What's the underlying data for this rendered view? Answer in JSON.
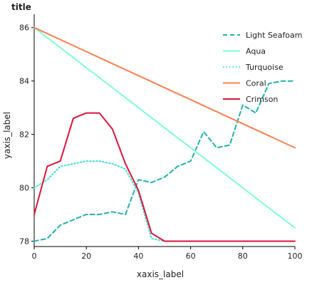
{
  "chart_data": {
    "type": "line",
    "title": "title",
    "xlabel": "xaxis_label",
    "ylabel": "yaxis_label",
    "xlim": [
      0,
      100
    ],
    "ylim": [
      77.8,
      86.5
    ],
    "xticks": [
      0,
      20,
      40,
      60,
      80,
      100
    ],
    "yticks": [
      78,
      80,
      82,
      84,
      86
    ],
    "grid": false,
    "legend_position": "top-right",
    "series": [
      {
        "name": "Light Seafoam",
        "color": "#20B2AA",
        "dash": "dash",
        "x": [
          0,
          5,
          10,
          15,
          20,
          25,
          30,
          35,
          40,
          45,
          50,
          55,
          60,
          65,
          70,
          75,
          80,
          85,
          90,
          95,
          100
        ],
        "y": [
          78.0,
          78.1,
          78.6,
          78.8,
          79.0,
          79.0,
          79.1,
          79.0,
          80.3,
          80.2,
          80.4,
          80.8,
          81.0,
          82.1,
          81.5,
          81.6,
          83.1,
          82.8,
          83.9,
          84.0,
          84.0
        ]
      },
      {
        "name": "Aqua",
        "color": "#7FFFD4",
        "dash": "solid",
        "x": [
          0,
          100
        ],
        "y": [
          86.0,
          78.5
        ]
      },
      {
        "name": "Turquoise",
        "color": "#40E0D0",
        "dash": "dot",
        "x": [
          0,
          5,
          10,
          15,
          20,
          25,
          30,
          35,
          40,
          45,
          50,
          55,
          60,
          65,
          70,
          75,
          80,
          85,
          90,
          95,
          100
        ],
        "y": [
          80.0,
          80.3,
          80.8,
          80.9,
          81.0,
          81.0,
          80.9,
          80.7,
          79.8,
          78.1,
          78.0,
          78.0,
          78.0,
          78.0,
          78.0,
          78.0,
          78.0,
          78.0,
          78.0,
          78.0,
          78.0
        ]
      },
      {
        "name": "Coral",
        "color": "#FF7F50",
        "dash": "solid",
        "x": [
          0,
          100
        ],
        "y": [
          86.0,
          81.5
        ]
      },
      {
        "name": "Crimson",
        "color": "#DC143C",
        "dash": "solid",
        "x": [
          0,
          5,
          10,
          15,
          20,
          25,
          30,
          35,
          40,
          45,
          50,
          55,
          60,
          65,
          70,
          75,
          80,
          85,
          90,
          95,
          100
        ],
        "y": [
          79.0,
          80.8,
          81.0,
          82.6,
          82.8,
          82.8,
          82.2,
          80.9,
          79.9,
          78.3,
          78.0,
          78.0,
          78.0,
          78.0,
          78.0,
          78.0,
          78.0,
          78.0,
          78.0,
          78.0,
          78.0
        ]
      }
    ],
    "legend_order": [
      "Light Seafoam",
      "Aqua",
      "Turquoise",
      "Coral",
      "Crimson"
    ]
  }
}
